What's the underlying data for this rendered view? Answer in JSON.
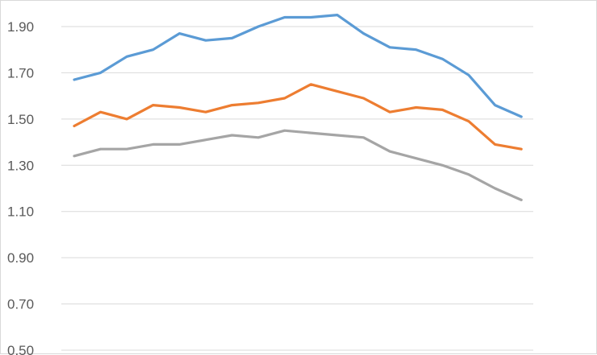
{
  "chart_data": {
    "type": "line",
    "title": "",
    "xlabel": "",
    "ylabel": "",
    "ylim": [
      0.5,
      1.9
    ],
    "grid": true,
    "legend": "none",
    "y_ticks": [
      "0.50",
      "0.70",
      "0.90",
      "1.10",
      "1.30",
      "1.50",
      "1.70",
      "1.90"
    ],
    "x": [
      1,
      2,
      3,
      4,
      5,
      6,
      7,
      8,
      9,
      10,
      11,
      12,
      13,
      14,
      15,
      16,
      17,
      18
    ],
    "series": [
      {
        "color": "#5b9bd5",
        "values": [
          1.67,
          1.7,
          1.77,
          1.8,
          1.87,
          1.84,
          1.85,
          1.9,
          1.94,
          1.94,
          1.95,
          1.87,
          1.81,
          1.8,
          1.76,
          1.69,
          1.56,
          1.51
        ]
      },
      {
        "color": "#ed7d31",
        "values": [
          1.47,
          1.53,
          1.5,
          1.56,
          1.55,
          1.53,
          1.56,
          1.57,
          1.59,
          1.65,
          1.62,
          1.59,
          1.53,
          1.55,
          1.54,
          1.49,
          1.39,
          1.37
        ]
      },
      {
        "color": "#a5a5a5",
        "values": [
          1.34,
          1.37,
          1.37,
          1.39,
          1.39,
          1.41,
          1.43,
          1.42,
          1.45,
          1.44,
          1.43,
          1.42,
          1.36,
          1.33,
          1.3,
          1.26,
          1.2,
          1.15
        ]
      }
    ]
  }
}
